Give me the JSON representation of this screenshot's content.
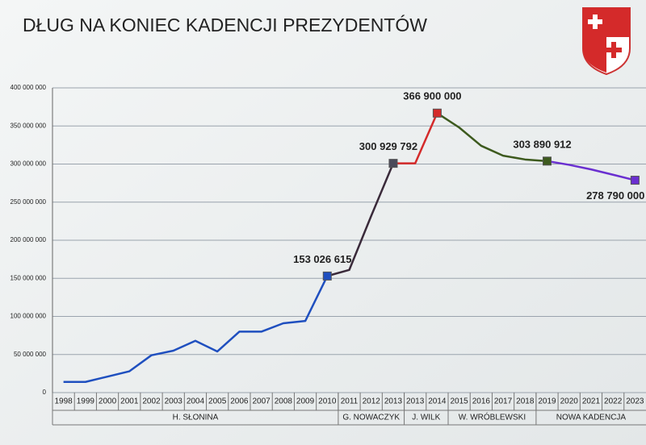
{
  "chart_data": {
    "type": "line",
    "title": "DŁUG NA KONIEC KADENCJI PREZYDENTÓW",
    "categories": [
      "1998",
      "1999",
      "2000",
      "2001",
      "2002",
      "2003",
      "2004",
      "2005",
      "2006",
      "2007",
      "2008",
      "2009",
      "2010",
      "2011",
      "2012",
      "2013",
      "2013",
      "2014",
      "2015",
      "2016",
      "2017",
      "2018",
      "2019",
      "2020",
      "2021",
      "2022",
      "2023"
    ],
    "values": [
      14000000,
      14000000,
      21000000,
      28000000,
      49000000,
      55000000,
      68000000,
      54000000,
      80000000,
      80000000,
      91000000,
      94000000,
      153026615,
      161000000,
      232000000,
      300929792,
      300929792,
      366900000,
      348000000,
      324000000,
      311000000,
      306000000,
      303890912,
      299000000,
      293000000,
      286000000,
      278790000
    ],
    "value_labels": [
      null,
      null,
      null,
      null,
      null,
      null,
      null,
      null,
      null,
      null,
      null,
      null,
      "153 026 615",
      null,
      null,
      "300 929 792",
      null,
      "366 900 000",
      null,
      null,
      null,
      null,
      "303 890 912",
      null,
      null,
      null,
      "278 790 000"
    ],
    "segments": [
      {
        "color": "#1f4fbf",
        "from": 0,
        "to": 12
      },
      {
        "color": "#3a2a3a",
        "from": 12,
        "to": 15
      },
      {
        "color": "#d42a2a",
        "from": 15,
        "to": 17
      },
      {
        "color": "#3d5a1e",
        "from": 17,
        "to": 22
      },
      {
        "color": "#6a2fd0",
        "from": 22,
        "to": 26
      }
    ],
    "markers": [
      {
        "index": 12,
        "color": "#1f4fbf"
      },
      {
        "index": 15,
        "color": "#4a4a5a"
      },
      {
        "index": 17,
        "color": "#d42a2a"
      },
      {
        "index": 22,
        "color": "#3d5a1e"
      },
      {
        "index": 26,
        "color": "#6a2fd0"
      }
    ],
    "groups": [
      {
        "label": "H. SŁONINA",
        "count": 13
      },
      {
        "label": "G. NOWACZYK",
        "count": 3
      },
      {
        "label": "J. WILK",
        "count": 2
      },
      {
        "label": "W. WRÓBLEWSKI",
        "count": 4
      },
      {
        "label": "NOWA KADENCJA",
        "count": 5
      }
    ],
    "ylim": [
      0,
      400000000
    ],
    "yticks": [
      {
        "value": 0,
        "label": "0"
      },
      {
        "value": 50000000,
        "label": "50 000 000"
      },
      {
        "value": 100000000,
        "label": "100 000 000"
      },
      {
        "value": 150000000,
        "label": "150 000 000"
      },
      {
        "value": 200000000,
        "label": "200 000 000"
      },
      {
        "value": 250000000,
        "label": "250 000 000"
      },
      {
        "value": 300000000,
        "label": "300 000 000"
      },
      {
        "value": 350000000,
        "label": "350 000 000"
      },
      {
        "value": 400000000,
        "label": "400 000 000"
      }
    ],
    "grid": true
  }
}
